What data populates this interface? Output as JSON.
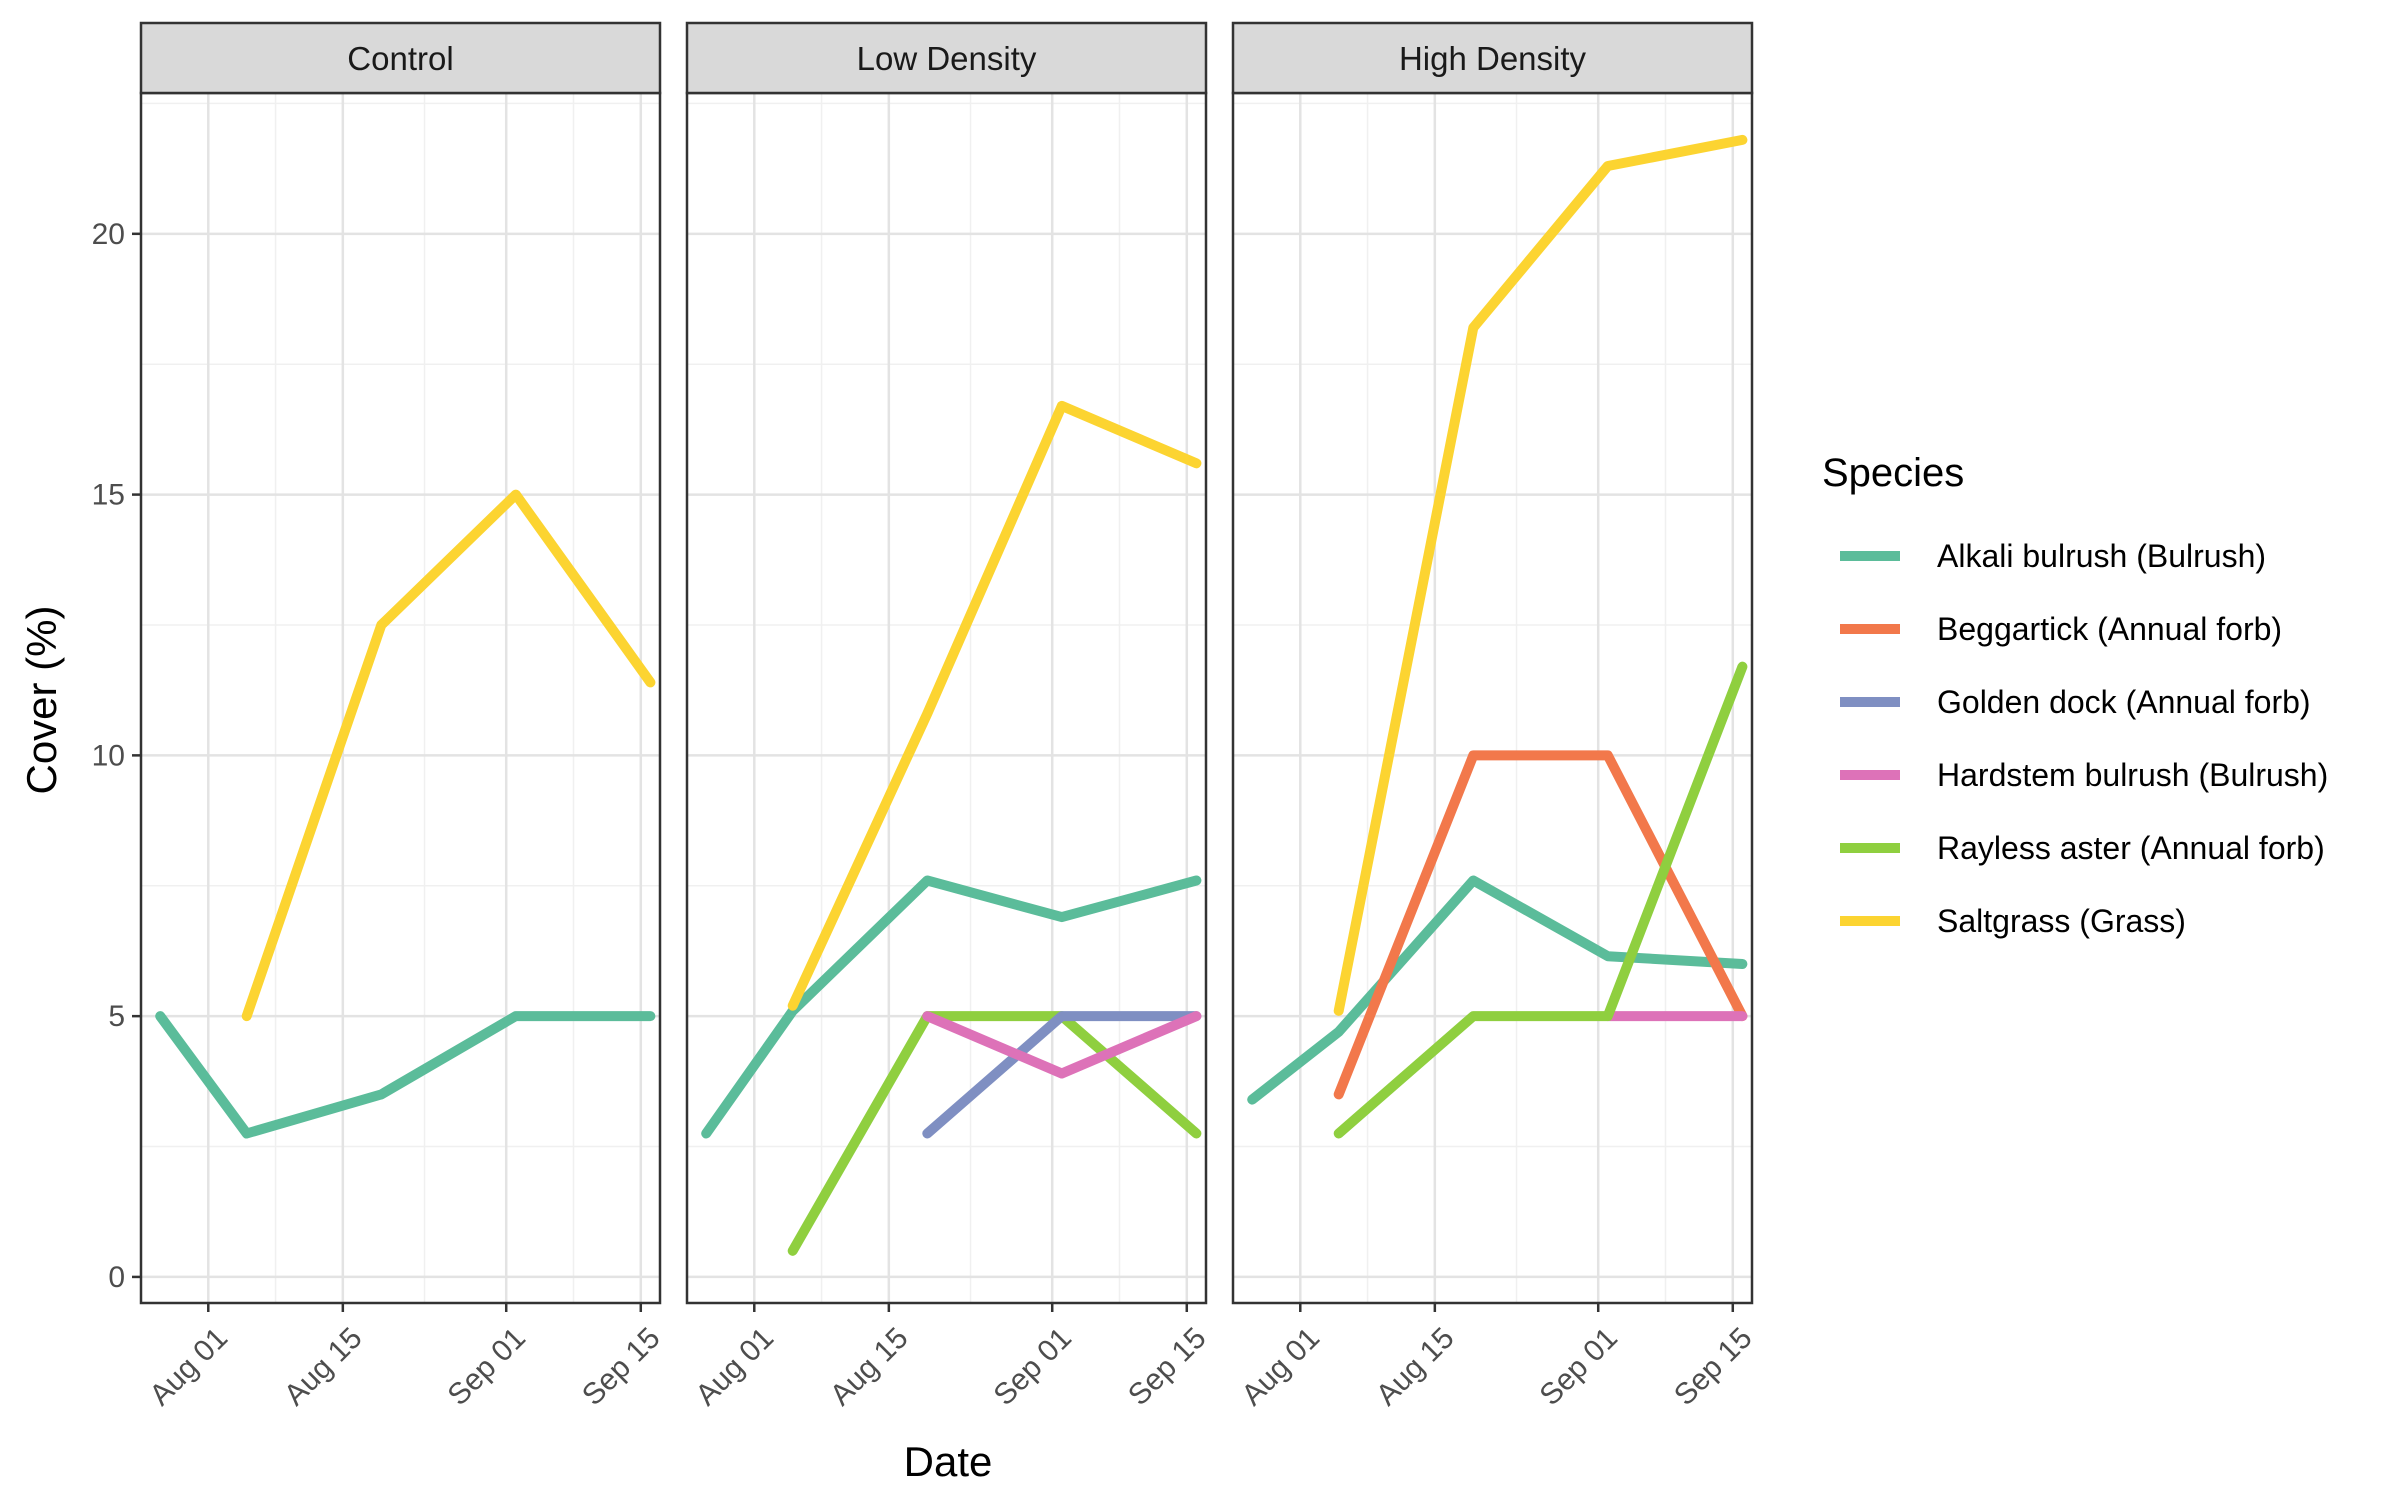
{
  "chart_data": {
    "type": "line",
    "facet_type": "small-multiples",
    "grid": true,
    "legend_position": "right",
    "xlabel": "Date",
    "ylabel": "Cover (%)",
    "ylim": [
      -0.5,
      22.7
    ],
    "xlim": [
      "2023-07-25",
      "2023-09-17"
    ],
    "x_ticks": [
      {
        "date": "2023-08-01",
        "label": "Aug 01"
      },
      {
        "date": "2023-08-15",
        "label": "Aug 15"
      },
      {
        "date": "2023-09-01",
        "label": "Sep 01"
      },
      {
        "date": "2023-09-15",
        "label": "Sep 15"
      }
    ],
    "y_ticks": [
      0,
      5,
      10,
      15,
      20
    ],
    "legend": {
      "title": "Species",
      "entries": [
        {
          "name": "Alkali bulrush (Bulrush)",
          "color": "#5bbc9a"
        },
        {
          "name": "Beggartick (Annual forb)",
          "color": "#f2784b"
        },
        {
          "name": "Golden dock (Annual forb)",
          "color": "#7f8fc2"
        },
        {
          "name": "Hardstem bulrush (Bulrush)",
          "color": "#dd72b8"
        },
        {
          "name": "Rayless aster (Annual forb)",
          "color": "#8fcf3f"
        },
        {
          "name": "Saltgrass (Grass)",
          "color": "#fcd431"
        }
      ]
    },
    "panels": [
      {
        "title": "Control",
        "series": [
          {
            "name": "Alkali bulrush (Bulrush)",
            "x": [
              "2023-07-27",
              "2023-08-05",
              "2023-08-19",
              "2023-09-02",
              "2023-09-16"
            ],
            "y": [
              5,
              2.75,
              3.5,
              5,
              5
            ]
          },
          {
            "name": "Saltgrass (Grass)",
            "x": [
              "2023-08-05",
              "2023-08-19",
              "2023-09-02",
              "2023-09-16"
            ],
            "y": [
              5,
              12.5,
              15,
              11.4
            ]
          }
        ]
      },
      {
        "title": "Low Density",
        "series": [
          {
            "name": "Alkali bulrush (Bulrush)",
            "x": [
              "2023-07-27",
              "2023-08-05",
              "2023-08-19",
              "2023-09-02",
              "2023-09-16"
            ],
            "y": [
              2.75,
              5.1,
              7.6,
              6.9,
              7.6
            ]
          },
          {
            "name": "Saltgrass (Grass)",
            "x": [
              "2023-08-05",
              "2023-08-19",
              "2023-09-02",
              "2023-09-16"
            ],
            "y": [
              5.2,
              10.8,
              16.7,
              15.6
            ]
          },
          {
            "name": "Rayless aster (Annual forb)",
            "x": [
              "2023-08-05",
              "2023-08-19",
              "2023-09-02",
              "2023-09-16"
            ],
            "y": [
              0.5,
              5,
              5,
              2.75
            ]
          },
          {
            "name": "Golden dock (Annual forb)",
            "x": [
              "2023-08-19",
              "2023-09-02",
              "2023-09-16"
            ],
            "y": [
              2.75,
              5,
              5
            ]
          },
          {
            "name": "Hardstem bulrush (Bulrush)",
            "x": [
              "2023-08-19",
              "2023-09-02",
              "2023-09-16"
            ],
            "y": [
              5,
              3.9,
              5
            ]
          }
        ]
      },
      {
        "title": "High Density",
        "series": [
          {
            "name": "Alkali bulrush (Bulrush)",
            "x": [
              "2023-07-27",
              "2023-08-05",
              "2023-08-19",
              "2023-09-02",
              "2023-09-16"
            ],
            "y": [
              3.4,
              4.7,
              7.6,
              6.15,
              6.0
            ]
          },
          {
            "name": "Saltgrass (Grass)",
            "x": [
              "2023-08-05",
              "2023-08-19",
              "2023-09-02",
              "2023-09-16"
            ],
            "y": [
              5.1,
              18.2,
              21.3,
              21.8
            ]
          },
          {
            "name": "Beggartick (Annual forb)",
            "x": [
              "2023-08-05",
              "2023-08-19",
              "2023-09-02",
              "2023-09-16"
            ],
            "y": [
              3.5,
              10,
              10,
              5
            ]
          },
          {
            "name": "Hardstem bulrush (Bulrush)",
            "x": [
              "2023-09-02",
              "2023-09-16"
            ],
            "y": [
              5,
              5
            ]
          },
          {
            "name": "Rayless aster (Annual forb)",
            "x": [
              "2023-08-05",
              "2023-08-19",
              "2023-09-02",
              "2023-09-16"
            ],
            "y": [
              2.75,
              5,
              5,
              11.7
            ]
          }
        ]
      }
    ]
  }
}
